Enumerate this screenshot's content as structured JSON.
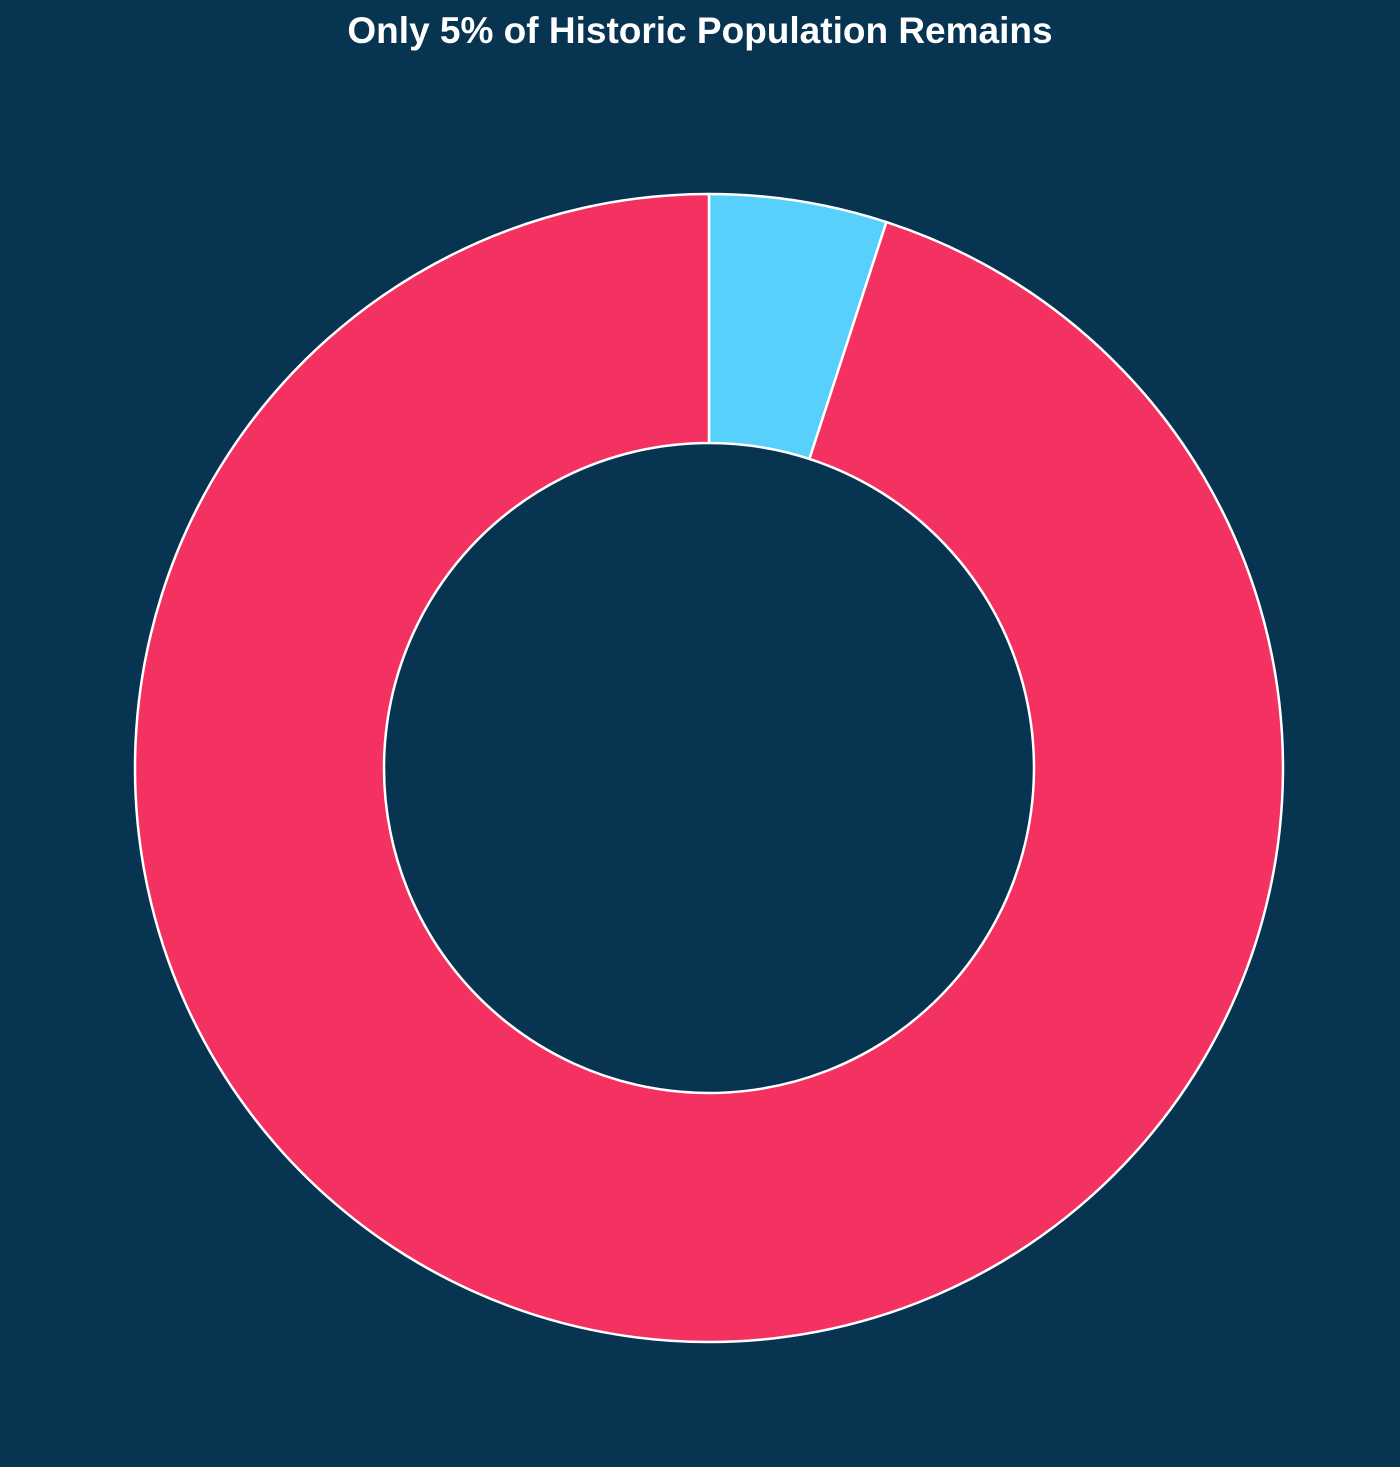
{
  "chart_data": {
    "type": "pie",
    "title": "Only 5% of Historic Population Remains",
    "slices": [
      {
        "value": 5,
        "color": "#57d0fb"
      },
      {
        "value": 95,
        "color": "#f43262"
      }
    ],
    "start_angle": "top",
    "direction": "clockwise",
    "hole": true,
    "background_color": "#073450",
    "edge_color": "#ffffff",
    "legend": "none"
  }
}
